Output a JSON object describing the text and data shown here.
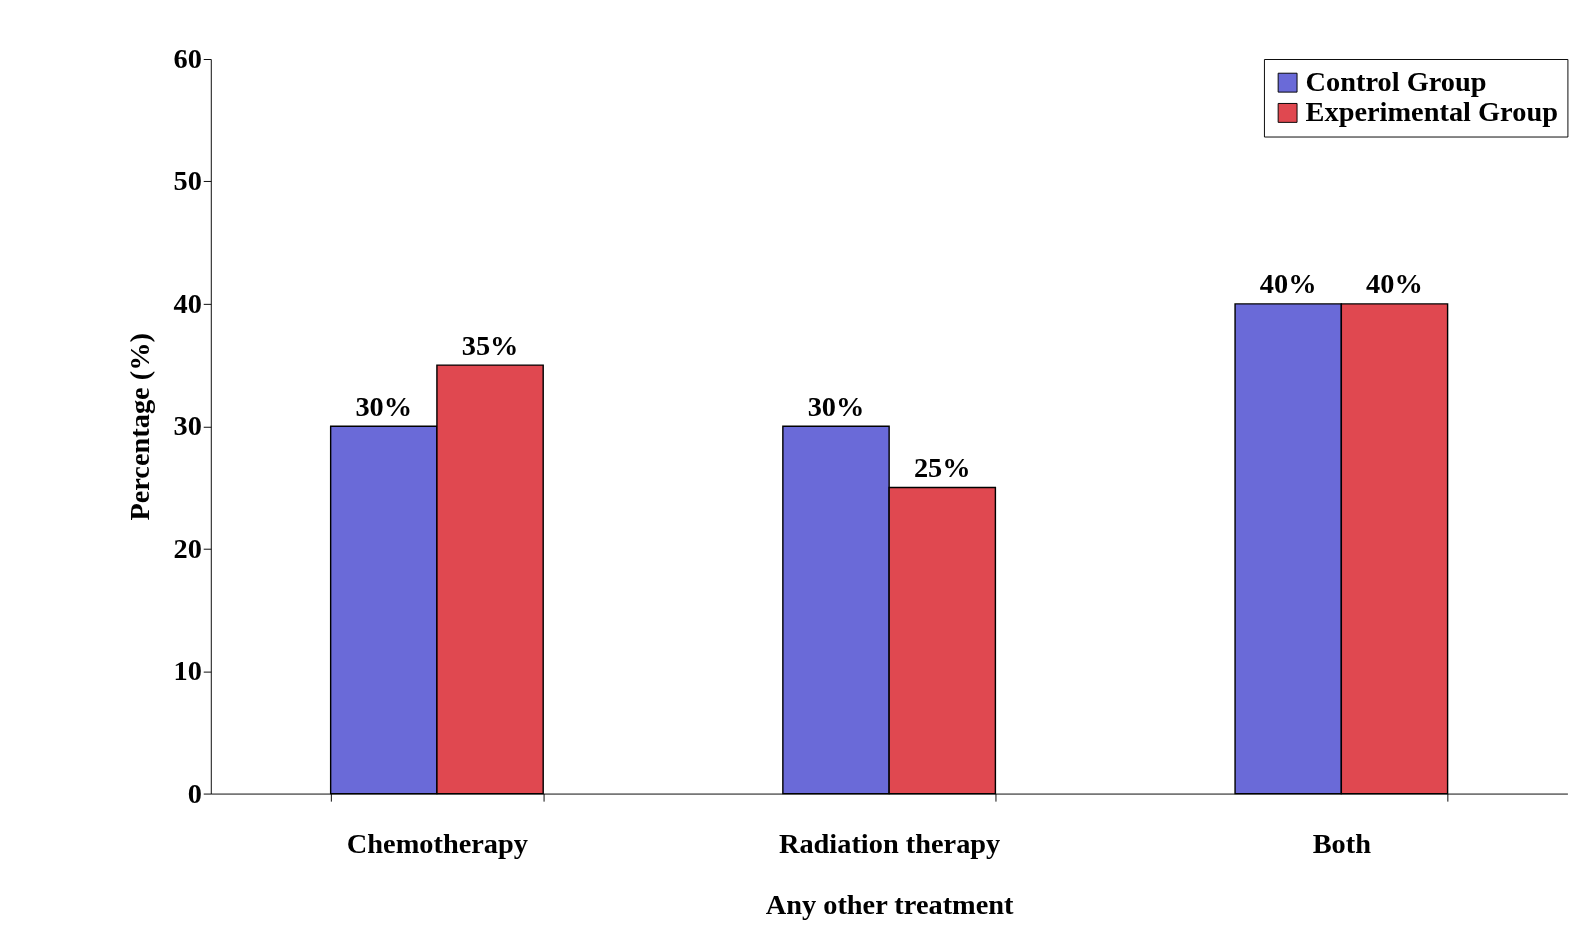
{
  "chart_data": {
    "type": "bar",
    "xlabel": "Any other treatment",
    "ylabel": "Percentage (%)",
    "categories": [
      "Chemotherapy",
      "Radiation therapy",
      "Both"
    ],
    "series": [
      {
        "name": "Control Group",
        "color": "#6a6ad8",
        "values": [
          30,
          30,
          40
        ],
        "value_labels": [
          "30%",
          "30%",
          "40%"
        ]
      },
      {
        "name": "Experimental Group",
        "color": "#e04850",
        "values": [
          35,
          25,
          40
        ],
        "value_labels": [
          "35%",
          "25%",
          "40%"
        ]
      }
    ],
    "ylim": [
      0,
      60
    ],
    "yticks": [
      0,
      10,
      20,
      30,
      40,
      50,
      60
    ],
    "grid": false,
    "legend": "top right"
  }
}
